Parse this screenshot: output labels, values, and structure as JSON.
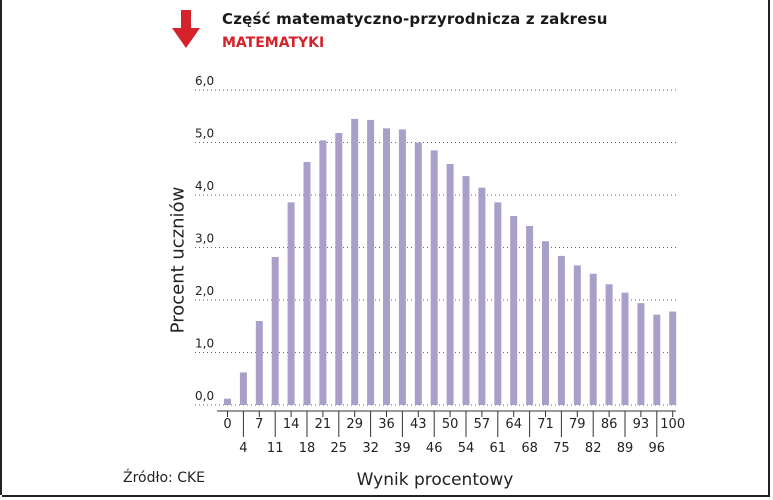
{
  "header": {
    "title_line1": "Część matematyczno-przyrodnicza z zakresu",
    "title_line2": "MATEMATYKI",
    "arrow_icon": "down-arrow-icon",
    "accent_color": "#d5232b"
  },
  "source": "Źródło: CKE",
  "chart_data": {
    "type": "bar",
    "xlabel": "Wynik procentowy",
    "ylabel": "Procent uczniów",
    "ylim": [
      0,
      6
    ],
    "y_ticks": [
      "0,0",
      "1,0",
      "2,0",
      "3,0",
      "4,0",
      "5,0",
      "6,0"
    ],
    "grid": true,
    "bar_color": "#aa9fc9",
    "categories": [
      "0",
      "4",
      "7",
      "11",
      "14",
      "18",
      "21",
      "25",
      "29",
      "32",
      "36",
      "39",
      "43",
      "46",
      "50",
      "54",
      "57",
      "61",
      "64",
      "68",
      "71",
      "75",
      "79",
      "82",
      "86",
      "89",
      "93",
      "96",
      "100"
    ],
    "values": [
      0.12,
      0.62,
      1.6,
      2.82,
      3.86,
      4.63,
      5.04,
      5.18,
      5.45,
      5.43,
      5.27,
      5.25,
      5.0,
      4.85,
      4.59,
      4.36,
      4.14,
      3.86,
      3.6,
      3.41,
      3.12,
      2.84,
      2.66,
      2.5,
      2.3,
      2.14,
      1.94,
      1.72,
      1.78
    ]
  }
}
